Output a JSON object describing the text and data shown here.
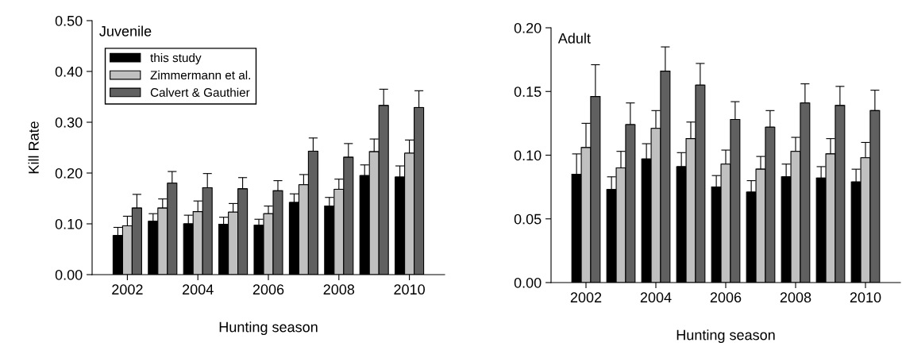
{
  "chart_data": [
    {
      "type": "bar",
      "title": "Juvenile",
      "xlabel": "Hunting season",
      "ylabel": "Kill Rate",
      "x": [
        2002,
        2003,
        2004,
        2005,
        2006,
        2007,
        2008,
        2009,
        2010
      ],
      "series": [
        {
          "name": "this study",
          "color": "#000000",
          "values": [
            0.077,
            0.105,
            0.1,
            0.099,
            0.097,
            0.142,
            0.135,
            0.195,
            0.192
          ],
          "errors": [
            [
              0.077,
              0.093
            ],
            [
              0.105,
              0.12
            ],
            [
              0.1,
              0.117
            ],
            [
              0.099,
              0.113
            ],
            [
              0.097,
              0.109
            ],
            [
              0.142,
              0.159
            ],
            [
              0.135,
              0.152
            ],
            [
              0.195,
              0.216
            ],
            [
              0.192,
              0.214
            ]
          ]
        },
        {
          "name": "Zimmermann et al.",
          "color": "#c0c0c0",
          "values": [
            0.096,
            0.131,
            0.124,
            0.123,
            0.12,
            0.177,
            0.168,
            0.242,
            0.239
          ],
          "errors": [
            [
              0.096,
              0.115
            ],
            [
              0.131,
              0.149
            ],
            [
              0.124,
              0.145
            ],
            [
              0.123,
              0.14
            ],
            [
              0.12,
              0.135
            ],
            [
              0.177,
              0.197
            ],
            [
              0.168,
              0.188
            ],
            [
              0.242,
              0.267
            ],
            [
              0.239,
              0.265
            ]
          ]
        },
        {
          "name": "Calvert & Gauthier",
          "color": "#606060",
          "values": [
            0.131,
            0.18,
            0.171,
            0.169,
            0.165,
            0.243,
            0.231,
            0.333,
            0.329
          ],
          "errors": [
            [
              0.131,
              0.158
            ],
            [
              0.18,
              0.203
            ],
            [
              0.171,
              0.199
            ],
            [
              0.169,
              0.191
            ],
            [
              0.165,
              0.185
            ],
            [
              0.243,
              0.269
            ],
            [
              0.231,
              0.258
            ],
            [
              0.333,
              0.365
            ],
            [
              0.329,
              0.362
            ]
          ]
        }
      ],
      "xlim": [
        2001,
        2011
      ],
      "xticks": [
        2002,
        2004,
        2006,
        2008,
        2010
      ],
      "ylim": [
        0,
        0.5
      ],
      "yticks": [
        {
          "value": 0,
          "label": "0.00"
        },
        {
          "value": 0.1,
          "label": "0.10"
        },
        {
          "value": 0.2,
          "label": "0.20"
        },
        {
          "value": 0.3,
          "label": "0.30"
        },
        {
          "value": 0.4,
          "label": "0.40"
        },
        {
          "value": 0.5,
          "label": "0.50"
        }
      ],
      "legend": "top left",
      "grid": false
    },
    {
      "type": "bar",
      "title": "Adult",
      "xlabel": "Hunting season",
      "x": [
        2002,
        2003,
        2004,
        2005,
        2006,
        2007,
        2008,
        2009,
        2010
      ],
      "series": [
        {
          "color": "#000000",
          "values": [
            0.085,
            0.073,
            0.097,
            0.091,
            0.075,
            0.071,
            0.083,
            0.082,
            0.079
          ],
          "errors": [
            [
              0.085,
              0.101
            ],
            [
              0.073,
              0.083
            ],
            [
              0.097,
              0.109
            ],
            [
              0.091,
              0.102
            ],
            [
              0.075,
              0.084
            ],
            [
              0.071,
              0.08
            ],
            [
              0.083,
              0.093
            ],
            [
              0.082,
              0.091
            ],
            [
              0.079,
              0.089
            ]
          ]
        },
        {
          "color": "#c0c0c0",
          "values": [
            0.106,
            0.09,
            0.121,
            0.113,
            0.093,
            0.089,
            0.103,
            0.101,
            0.098
          ],
          "errors": [
            [
              0.106,
              0.125
            ],
            [
              0.09,
              0.103
            ],
            [
              0.121,
              0.135
            ],
            [
              0.113,
              0.126
            ],
            [
              0.093,
              0.104
            ],
            [
              0.089,
              0.099
            ],
            [
              0.103,
              0.114
            ],
            [
              0.101,
              0.113
            ],
            [
              0.098,
              0.11
            ]
          ]
        },
        {
          "color": "#606060",
          "values": [
            0.146,
            0.124,
            0.166,
            0.155,
            0.128,
            0.122,
            0.141,
            0.139,
            0.135
          ],
          "errors": [
            [
              0.146,
              0.171
            ],
            [
              0.124,
              0.141
            ],
            [
              0.166,
              0.185
            ],
            [
              0.155,
              0.172
            ],
            [
              0.128,
              0.142
            ],
            [
              0.122,
              0.135
            ],
            [
              0.141,
              0.156
            ],
            [
              0.139,
              0.154
            ],
            [
              0.135,
              0.151
            ]
          ]
        }
      ],
      "xlim": [
        2001,
        2011
      ],
      "xticks": [
        2002,
        2004,
        2006,
        2008,
        2010
      ],
      "ylim": [
        0,
        0.2
      ],
      "yticks": [
        {
          "value": 0,
          "label": "0.00"
        },
        {
          "value": 0.05,
          "label": "0.05"
        },
        {
          "value": 0.1,
          "label": "0.10"
        },
        {
          "value": 0.15,
          "label": "0.15"
        },
        {
          "value": 0.2,
          "label": "0.20"
        }
      ],
      "legend": false,
      "grid": false
    }
  ]
}
